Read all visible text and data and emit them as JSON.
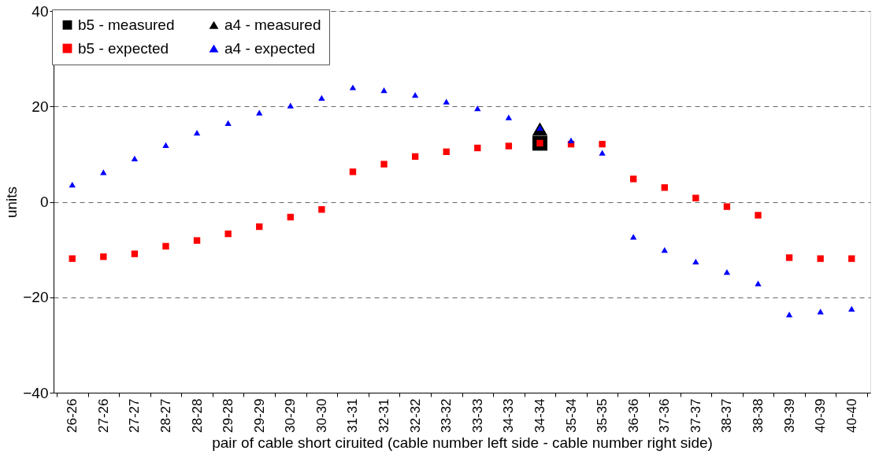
{
  "chart_data": {
    "type": "scatter",
    "xlabel": "pair of cable short ciruited (cable number left side - cable number right side)",
    "ylabel": "units",
    "categories": [
      "26-26",
      "27-26",
      "27-27",
      "28-27",
      "28-28",
      "29-28",
      "29-29",
      "30-29",
      "30-30",
      "31-31",
      "32-31",
      "32-32",
      "33-32",
      "33-33",
      "34-33",
      "34-34",
      "35-34",
      "35-35",
      "36-36",
      "37-36",
      "37-37",
      "38-37",
      "38-38",
      "39-39",
      "40-39",
      "40-40"
    ],
    "series": [
      {
        "name": "b5 - measured",
        "color": "#000000",
        "marker": "square",
        "values": [
          null,
          null,
          null,
          null,
          null,
          null,
          null,
          null,
          null,
          null,
          null,
          null,
          null,
          null,
          null,
          12.3,
          null,
          null,
          null,
          null,
          null,
          null,
          null,
          null,
          null,
          null
        ]
      },
      {
        "name": "a4 - measured",
        "color": "#000000",
        "marker": "triangle",
        "values": [
          null,
          null,
          null,
          null,
          null,
          null,
          null,
          null,
          null,
          null,
          null,
          null,
          null,
          null,
          null,
          15.3,
          null,
          null,
          null,
          null,
          null,
          null,
          null,
          null,
          null,
          null
        ]
      },
      {
        "name": "b5 - expected",
        "color": "#ff0000",
        "marker": "square",
        "values": [
          -11.9,
          -11.5,
          -10.9,
          -9.3,
          -8.1,
          -6.7,
          -5.2,
          -3.2,
          -1.6,
          6.3,
          7.9,
          9.5,
          10.5,
          11.3,
          11.7,
          12.3,
          12.1,
          12.1,
          4.8,
          3.0,
          0.8,
          -1.0,
          -2.8,
          -11.7,
          -11.9,
          -11.9
        ]
      },
      {
        "name": "a4 - expected",
        "color": "#0000ff",
        "marker": "triangle",
        "values": [
          3.6,
          6.2,
          9.1,
          11.9,
          14.5,
          16.5,
          18.7,
          20.2,
          21.8,
          24.0,
          23.4,
          22.4,
          21.0,
          19.6,
          17.7,
          15.5,
          12.9,
          10.3,
          -7.3,
          -10.1,
          -12.5,
          -14.7,
          -17.1,
          -23.6,
          -23.0,
          -22.4
        ]
      }
    ],
    "ylim": [
      -40,
      40
    ],
    "yticks": [
      -40,
      -20,
      0,
      20,
      40
    ],
    "grid": "y",
    "legend": "top left"
  }
}
